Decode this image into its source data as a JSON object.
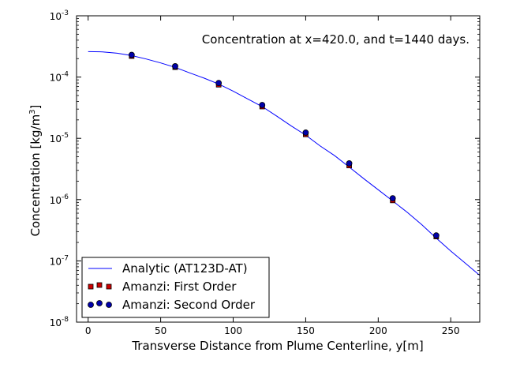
{
  "chart_data": {
    "type": "scatter",
    "title": "Concentration at x=420.0, and t=1440 days.",
    "xlabel": "Transverse Distance from Plume Centerline, y[m]",
    "ylabel_main": "Concentration [kg/m",
    "ylabel_sup": "3",
    "ylabel_end": "]",
    "xlim": [
      -8,
      270
    ],
    "ylim": [
      1e-08,
      0.001
    ],
    "yscale": "log",
    "grid": false,
    "legend_position": "lower-left",
    "x_ticks": [
      {
        "value": 0,
        "label": "0"
      },
      {
        "value": 50,
        "label": "50"
      },
      {
        "value": 100,
        "label": "100"
      },
      {
        "value": 150,
        "label": "150"
      },
      {
        "value": 200,
        "label": "200"
      },
      {
        "value": 250,
        "label": "250"
      }
    ],
    "y_ticks": [
      {
        "value": 1e-08,
        "exp": -8
      },
      {
        "value": 1e-07,
        "exp": -7
      },
      {
        "value": 1e-06,
        "exp": -6
      },
      {
        "value": 1e-05,
        "exp": -5
      },
      {
        "value": 0.0001,
        "exp": -4
      },
      {
        "value": 0.001,
        "exp": -3
      }
    ],
    "y_tick_base": "10",
    "series": [
      {
        "name": "Analytic (AT123D-AT)",
        "kind": "line",
        "color": "#0000ff",
        "x": [
          0,
          10,
          20,
          30,
          40,
          50,
          60,
          70,
          80,
          90,
          100,
          110,
          120,
          130,
          140,
          150,
          160,
          170,
          180,
          190,
          200,
          210,
          220,
          230,
          240,
          250,
          260,
          270
        ],
        "y": [
          0.00026,
          0.000258,
          0.000245,
          0.000224,
          0.000197,
          0.00017,
          0.000144,
          0.000117,
          9.6e-05,
          7.7e-05,
          5.9e-05,
          4.4e-05,
          3.3e-05,
          2.3e-05,
          1.6e-05,
          1.13e-05,
          7.5e-06,
          5.2e-06,
          3.4e-06,
          2.2e-06,
          1.45e-06,
          9.5e-07,
          6.2e-07,
          3.9e-07,
          2.35e-07,
          1.45e-07,
          9.2e-08,
          5.8e-08
        ]
      },
      {
        "name": "Amanzi: First Order",
        "kind": "square",
        "color": "#cc0000",
        "x": [
          30,
          60,
          90,
          120,
          150,
          180,
          210,
          240
        ],
        "y": [
          0.00022,
          0.000145,
          7.5e-05,
          3.3e-05,
          1.16e-05,
          3.6e-06,
          9.7e-07,
          2.5e-07
        ]
      },
      {
        "name": "Amanzi: Second Order",
        "kind": "circle",
        "color": "#0000aa",
        "x": [
          30,
          60,
          90,
          120,
          150,
          180,
          210,
          240
        ],
        "y": [
          0.00023,
          0.00015,
          8e-05,
          3.5e-05,
          1.24e-05,
          3.9e-06,
          1.05e-06,
          2.6e-07
        ]
      }
    ]
  }
}
